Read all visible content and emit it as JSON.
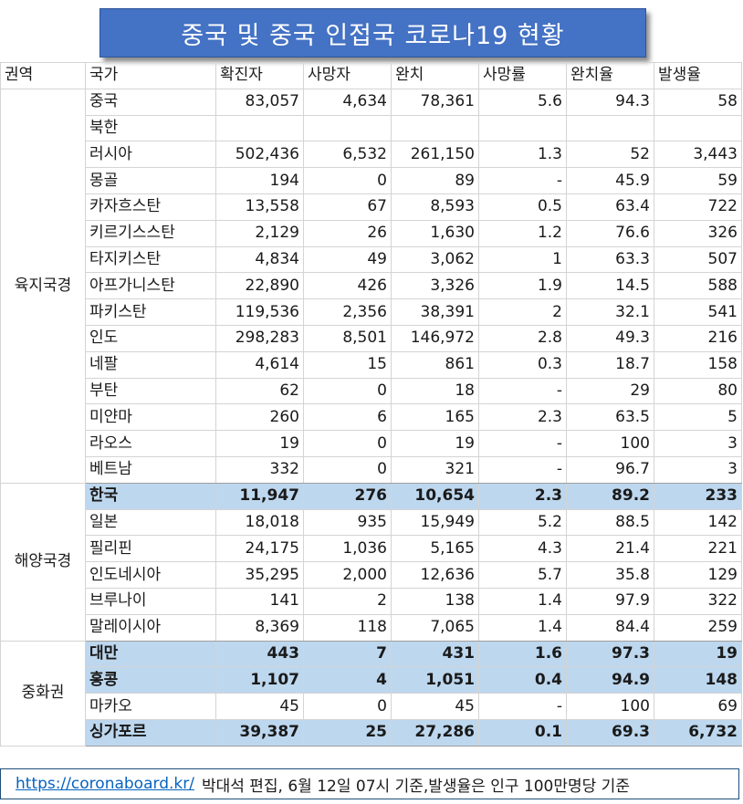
{
  "title": "중국 및 중국 인접국 코로나19 현황",
  "headers": [
    "권역",
    "국가",
    "확진자",
    "사망자",
    "완치",
    "사망률",
    "완치율",
    "발생율"
  ],
  "groups": [
    {
      "region": "육지국경",
      "rows": [
        {
          "country": "중국",
          "confirmed": "83,057",
          "deaths": "4,634",
          "recovered": "78,361",
          "death_rate": "5.6",
          "recovery_rate": "94.3",
          "incidence": "58",
          "highlight": false
        },
        {
          "country": "북한",
          "confirmed": "",
          "deaths": "",
          "recovered": "",
          "death_rate": "",
          "recovery_rate": "",
          "incidence": "",
          "highlight": false
        },
        {
          "country": "러시아",
          "confirmed": "502,436",
          "deaths": "6,532",
          "recovered": "261,150",
          "death_rate": "1.3",
          "recovery_rate": "52",
          "incidence": "3,443",
          "highlight": false
        },
        {
          "country": "몽골",
          "confirmed": "194",
          "deaths": "0",
          "recovered": "89",
          "death_rate": "-",
          "recovery_rate": "45.9",
          "incidence": "59",
          "highlight": false
        },
        {
          "country": "카자흐스탄",
          "confirmed": "13,558",
          "deaths": "67",
          "recovered": "8,593",
          "death_rate": "0.5",
          "recovery_rate": "63.4",
          "incidence": "722",
          "highlight": false
        },
        {
          "country": "키르기스스탄",
          "confirmed": "2,129",
          "deaths": "26",
          "recovered": "1,630",
          "death_rate": "1.2",
          "recovery_rate": "76.6",
          "incidence": "326",
          "highlight": false
        },
        {
          "country": "타지키스탄",
          "confirmed": "4,834",
          "deaths": "49",
          "recovered": "3,062",
          "death_rate": "1",
          "recovery_rate": "63.3",
          "incidence": "507",
          "highlight": false
        },
        {
          "country": "아프가니스탄",
          "confirmed": "22,890",
          "deaths": "426",
          "recovered": "3,326",
          "death_rate": "1.9",
          "recovery_rate": "14.5",
          "incidence": "588",
          "highlight": false
        },
        {
          "country": "파키스탄",
          "confirmed": "119,536",
          "deaths": "2,356",
          "recovered": "38,391",
          "death_rate": "2",
          "recovery_rate": "32.1",
          "incidence": "541",
          "highlight": false
        },
        {
          "country": "인도",
          "confirmed": "298,283",
          "deaths": "8,501",
          "recovered": "146,972",
          "death_rate": "2.8",
          "recovery_rate": "49.3",
          "incidence": "216",
          "highlight": false
        },
        {
          "country": "네팔",
          "confirmed": "4,614",
          "deaths": "15",
          "recovered": "861",
          "death_rate": "0.3",
          "recovery_rate": "18.7",
          "incidence": "158",
          "highlight": false
        },
        {
          "country": "부탄",
          "confirmed": "62",
          "deaths": "0",
          "recovered": "18",
          "death_rate": "-",
          "recovery_rate": "29",
          "incidence": "80",
          "highlight": false
        },
        {
          "country": "미얀마",
          "confirmed": "260",
          "deaths": "6",
          "recovered": "165",
          "death_rate": "2.3",
          "recovery_rate": "63.5",
          "incidence": "5",
          "highlight": false
        },
        {
          "country": "라오스",
          "confirmed": "19",
          "deaths": "0",
          "recovered": "19",
          "death_rate": "-",
          "recovery_rate": "100",
          "incidence": "3",
          "highlight": false
        },
        {
          "country": "베트남",
          "confirmed": "332",
          "deaths": "0",
          "recovered": "321",
          "death_rate": "-",
          "recovery_rate": "96.7",
          "incidence": "3",
          "highlight": false
        }
      ]
    },
    {
      "region": "해양국경",
      "rows": [
        {
          "country": "한국",
          "confirmed": "11,947",
          "deaths": "276",
          "recovered": "10,654",
          "death_rate": "2.3",
          "recovery_rate": "89.2",
          "incidence": "233",
          "highlight": true
        },
        {
          "country": "일본",
          "confirmed": "18,018",
          "deaths": "935",
          "recovered": "15,949",
          "death_rate": "5.2",
          "recovery_rate": "88.5",
          "incidence": "142",
          "highlight": false
        },
        {
          "country": "필리핀",
          "confirmed": "24,175",
          "deaths": "1,036",
          "recovered": "5,165",
          "death_rate": "4.3",
          "recovery_rate": "21.4",
          "incidence": "221",
          "highlight": false
        },
        {
          "country": "인도네시아",
          "confirmed": "35,295",
          "deaths": "2,000",
          "recovered": "12,636",
          "death_rate": "5.7",
          "recovery_rate": "35.8",
          "incidence": "129",
          "highlight": false
        },
        {
          "country": "브루나이",
          "confirmed": "141",
          "deaths": "2",
          "recovered": "138",
          "death_rate": "1.4",
          "recovery_rate": "97.9",
          "incidence": "322",
          "highlight": false
        },
        {
          "country": "말레이시아",
          "confirmed": "8,369",
          "deaths": "118",
          "recovered": "7,065",
          "death_rate": "1.4",
          "recovery_rate": "84.4",
          "incidence": "259",
          "highlight": false
        }
      ]
    },
    {
      "region": "중화권",
      "rows": [
        {
          "country": "대만",
          "confirmed": "443",
          "deaths": "7",
          "recovered": "431",
          "death_rate": "1.6",
          "recovery_rate": "97.3",
          "incidence": "19",
          "highlight": true
        },
        {
          "country": "홍콩",
          "confirmed": "1,107",
          "deaths": "4",
          "recovered": "1,051",
          "death_rate": "0.4",
          "recovery_rate": "94.9",
          "incidence": "148",
          "highlight": true
        },
        {
          "country": "마카오",
          "confirmed": "45",
          "deaths": "0",
          "recovered": "45",
          "death_rate": "-",
          "recovery_rate": "100",
          "incidence": "69",
          "highlight": false
        },
        {
          "country": "싱가포르",
          "confirmed": "39,387",
          "deaths": "25",
          "recovered": "27,286",
          "death_rate": "0.1",
          "recovery_rate": "69.3",
          "incidence": "6,732",
          "highlight": true
        }
      ]
    }
  ],
  "footer": {
    "link": "https://coronaboard.kr/",
    "note": "박대석 편집, 6월 12일 07시 기준,발생율은 인구 100만명당 기준"
  }
}
